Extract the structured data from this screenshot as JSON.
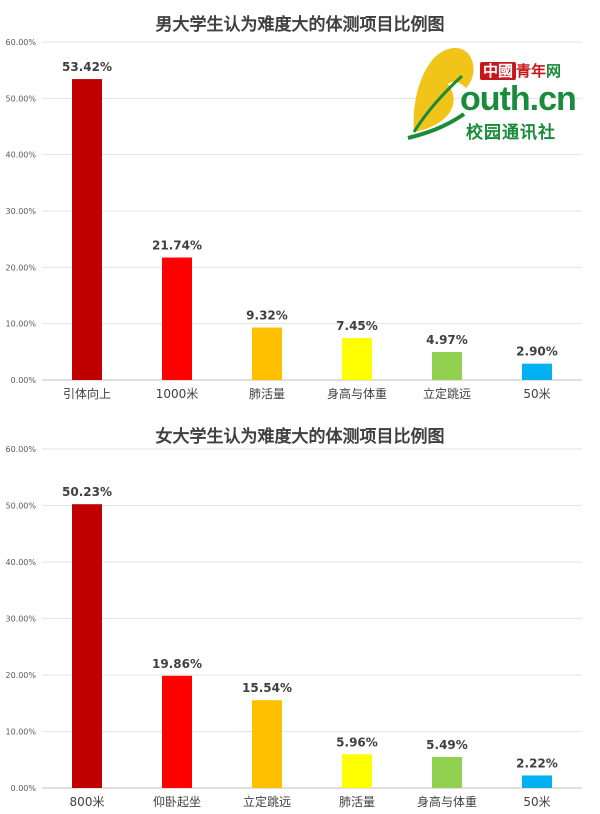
{
  "chart_data": [
    {
      "id": "male",
      "type": "bar",
      "title": "男大学生认为难度大的体测项目比例图",
      "categories": [
        "引体向上",
        "1000米",
        "肺活量",
        "身高与体重",
        "立定跳远",
        "50米"
      ],
      "values": [
        53.42,
        21.74,
        9.32,
        7.45,
        4.97,
        2.9
      ],
      "value_labels": [
        "53.42%",
        "21.74%",
        "9.32%",
        "7.45%",
        "4.97%",
        "2.90%"
      ],
      "colors": [
        "#c00000",
        "#ff0000",
        "#ffc000",
        "#ffff00",
        "#92d050",
        "#00b0f0"
      ],
      "yticks": [
        "0.00%",
        "10.00%",
        "20.00%",
        "30.00%",
        "40.00%",
        "50.00%",
        "60.00%"
      ],
      "ylim": [
        0,
        60
      ],
      "grid": true
    },
    {
      "id": "female",
      "type": "bar",
      "title": "女大学生认为难度大的体测项目比例图",
      "categories": [
        "800米",
        "仰卧起坐",
        "立定跳远",
        "肺活量",
        "身高与体重",
        "50米"
      ],
      "values": [
        50.23,
        19.86,
        15.54,
        5.96,
        5.49,
        2.22
      ],
      "value_labels": [
        "50.23%",
        "19.86%",
        "15.54%",
        "5.96%",
        "5.49%",
        "2.22%"
      ],
      "colors": [
        "#c00000",
        "#ff0000",
        "#ffc000",
        "#ffff00",
        "#92d050",
        "#00b0f0"
      ],
      "yticks": [
        "0.00%",
        "10.00%",
        "20.00%",
        "30.00%",
        "40.00%",
        "50.00%",
        "60.00%"
      ],
      "ylim": [
        0,
        60
      ],
      "grid": true
    }
  ],
  "logo": {
    "brand_cn": "中國",
    "brand_rest": "青年",
    "brand_net": "网",
    "domain": "outh.cn",
    "subtitle": "校园通讯社",
    "colors": {
      "green": "#1a8b3a",
      "red": "#c8161d",
      "leaf": "#f0c419"
    }
  }
}
